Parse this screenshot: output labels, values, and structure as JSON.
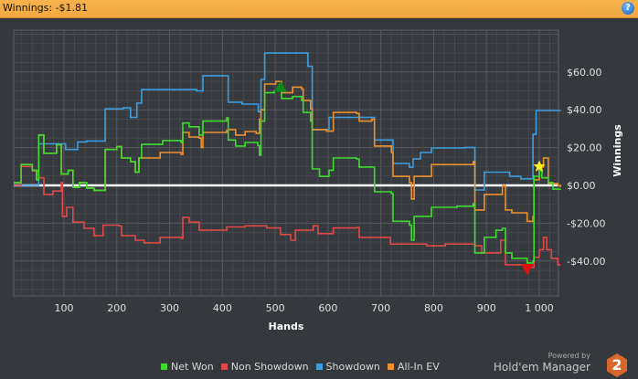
{
  "header": {
    "title": "Winnings: -$1.81",
    "help_icon": "help-icon"
  },
  "branding": {
    "powered_by": "Powered by",
    "name": "Hold'em Manager",
    "badge": "2"
  },
  "chart_data": {
    "type": "line",
    "xlabel": "Hands",
    "ylabel": "Winnings",
    "xlim": [
      5,
      1040
    ],
    "ylim": [
      -58,
      82
    ],
    "x_ticks": [
      100,
      200,
      300,
      400,
      500,
      600,
      700,
      800,
      900,
      1000
    ],
    "x_tick_labels": [
      "100",
      "200",
      "300",
      "400",
      "500",
      "600",
      "700",
      "800",
      "900",
      "1 000"
    ],
    "y_ticks": [
      -40,
      -20,
      0,
      20,
      40,
      60
    ],
    "y_tick_labels": [
      "-$40.00",
      "-$20.00",
      "$0.00",
      "$20.00",
      "$40.00",
      "$60.00"
    ],
    "grid": true,
    "legend": "bottom",
    "series": [
      {
        "name": "Net Won",
        "color": "#3ddc2f",
        "points": [
          [
            5,
            1.5
          ],
          [
            19,
            11
          ],
          [
            40,
            8
          ],
          [
            48,
            3
          ],
          [
            52,
            26.6
          ],
          [
            62,
            17
          ],
          [
            86,
            21.5
          ],
          [
            95,
            6
          ],
          [
            108,
            8
          ],
          [
            117,
            -1
          ],
          [
            129,
            1.5
          ],
          [
            143,
            -1.5
          ],
          [
            157,
            -2.6
          ],
          [
            178,
            19
          ],
          [
            200,
            20.5
          ],
          [
            209,
            14.5
          ],
          [
            226,
            12.5
          ],
          [
            235,
            7
          ],
          [
            242,
            14.5
          ],
          [
            247,
            21.7
          ],
          [
            287,
            23.7
          ],
          [
            322,
            22.7
          ],
          [
            325,
            33
          ],
          [
            337,
            31
          ],
          [
            356,
            26.6
          ],
          [
            363,
            34
          ],
          [
            408,
            35.7
          ],
          [
            411,
            24
          ],
          [
            425,
            20.8
          ],
          [
            443,
            22.7
          ],
          [
            467,
            21
          ],
          [
            470,
            16
          ],
          [
            473,
            34
          ],
          [
            480,
            49
          ],
          [
            498,
            50
          ],
          [
            512,
            46
          ],
          [
            533,
            47
          ],
          [
            550,
            45
          ],
          [
            553,
            38.6
          ],
          [
            567,
            34
          ],
          [
            570,
            8.7
          ],
          [
            584,
            4.8
          ],
          [
            602,
            8
          ],
          [
            610,
            14.5
          ],
          [
            654,
            14
          ],
          [
            659,
            9.7
          ],
          [
            688,
            -3.4
          ],
          [
            720,
            -4.3
          ],
          [
            723,
            -19
          ],
          [
            754,
            -21
          ],
          [
            758,
            -29
          ],
          [
            763,
            -16.4
          ],
          [
            796,
            -11.6
          ],
          [
            844,
            -11
          ],
          [
            875,
            -9.7
          ],
          [
            878,
            -35.7
          ],
          [
            896,
            -27.5
          ],
          [
            918,
            -23.7
          ],
          [
            930,
            -22.7
          ],
          [
            936,
            -35.7
          ],
          [
            948,
            -38.6
          ],
          [
            977,
            -41
          ],
          [
            988,
            -40
          ],
          [
            990,
            4.8
          ],
          [
            1000,
            7.7
          ],
          [
            1005,
            4
          ],
          [
            1017,
            1.5
          ],
          [
            1026,
            -2
          ],
          [
            1040,
            -1.81
          ]
        ]
      },
      {
        "name": "Non Showdown",
        "color": "#e04848",
        "points": [
          [
            5,
            0
          ],
          [
            19,
            10
          ],
          [
            40,
            7.7
          ],
          [
            52,
            4
          ],
          [
            62,
            -4.8
          ],
          [
            79,
            -3
          ],
          [
            95,
            1.5
          ],
          [
            97,
            -16.4
          ],
          [
            105,
            -11.6
          ],
          [
            117,
            -19.4
          ],
          [
            138,
            -22.7
          ],
          [
            157,
            -26.6
          ],
          [
            174,
            -21
          ],
          [
            204,
            -21.5
          ],
          [
            209,
            -26.6
          ],
          [
            235,
            -29
          ],
          [
            252,
            -30.4
          ],
          [
            282,
            -27.5
          ],
          [
            322,
            -28
          ],
          [
            325,
            -17
          ],
          [
            337,
            -19.4
          ],
          [
            356,
            -23.7
          ],
          [
            408,
            -22
          ],
          [
            443,
            -21.4
          ],
          [
            484,
            -22.5
          ],
          [
            510,
            -26
          ],
          [
            515,
            -26
          ],
          [
            529,
            -29
          ],
          [
            538,
            -23.7
          ],
          [
            572,
            -21.4
          ],
          [
            581,
            -25.5
          ],
          [
            610,
            -22.5
          ],
          [
            654,
            -22.3
          ],
          [
            659,
            -27.5
          ],
          [
            688,
            -27.5
          ],
          [
            718,
            -31
          ],
          [
            787,
            -32
          ],
          [
            822,
            -31
          ],
          [
            878,
            -32
          ],
          [
            891,
            -35.7
          ],
          [
            927,
            -29
          ],
          [
            936,
            -42
          ],
          [
            977,
            -43.5
          ],
          [
            990,
            -38
          ],
          [
            1000,
            -34
          ],
          [
            1008,
            -27.5
          ],
          [
            1014,
            -34
          ],
          [
            1023,
            -38.6
          ],
          [
            1035,
            -42
          ],
          [
            1040,
            -42
          ]
        ]
      },
      {
        "name": "Showdown",
        "color": "#3a9ee0",
        "points": [
          [
            5,
            0
          ],
          [
            27,
            0
          ],
          [
            52,
            22
          ],
          [
            103,
            19
          ],
          [
            126,
            23
          ],
          [
            143,
            23.5
          ],
          [
            178,
            40.5
          ],
          [
            212,
            41
          ],
          [
            226,
            36
          ],
          [
            238,
            43.5
          ],
          [
            247,
            50.7
          ],
          [
            351,
            50
          ],
          [
            363,
            58
          ],
          [
            411,
            44
          ],
          [
            437,
            43
          ],
          [
            468,
            39
          ],
          [
            473,
            56
          ],
          [
            480,
            70
          ],
          [
            550,
            70
          ],
          [
            562,
            63
          ],
          [
            570,
            29.5
          ],
          [
            602,
            36
          ],
          [
            688,
            24
          ],
          [
            723,
            11.6
          ],
          [
            754,
            9.6
          ],
          [
            761,
            14
          ],
          [
            775,
            17.4
          ],
          [
            796,
            19.8
          ],
          [
            858,
            20
          ],
          [
            878,
            -2.4
          ],
          [
            896,
            7
          ],
          [
            944,
            4.8
          ],
          [
            965,
            3.5
          ],
          [
            988,
            27
          ],
          [
            994,
            39.6
          ],
          [
            1040,
            40
          ]
        ]
      },
      {
        "name": "All-In EV",
        "color": "#f0902c",
        "points": [
          [
            5,
            1.5
          ],
          [
            19,
            11
          ],
          [
            40,
            8
          ],
          [
            48,
            3
          ],
          [
            52,
            26.6
          ],
          [
            62,
            17
          ],
          [
            86,
            21.5
          ],
          [
            95,
            6
          ],
          [
            108,
            8
          ],
          [
            117,
            -1
          ],
          [
            129,
            1.5
          ],
          [
            143,
            -1.5
          ],
          [
            157,
            -2.6
          ],
          [
            178,
            19
          ],
          [
            200,
            20.5
          ],
          [
            209,
            14.5
          ],
          [
            226,
            12.5
          ],
          [
            235,
            7
          ],
          [
            242,
            14.5
          ],
          [
            247,
            14.5
          ],
          [
            282,
            17.4
          ],
          [
            322,
            16.4
          ],
          [
            325,
            28
          ],
          [
            337,
            25.6
          ],
          [
            356,
            25
          ],
          [
            360,
            20
          ],
          [
            363,
            28
          ],
          [
            408,
            29
          ],
          [
            411,
            29.5
          ],
          [
            425,
            26.6
          ],
          [
            443,
            28.5
          ],
          [
            464,
            27.5
          ],
          [
            470,
            35
          ],
          [
            473,
            40
          ],
          [
            480,
            53.6
          ],
          [
            501,
            55
          ],
          [
            512,
            49
          ],
          [
            533,
            52
          ],
          [
            550,
            51
          ],
          [
            553,
            45
          ],
          [
            567,
            40.6
          ],
          [
            570,
            29.5
          ],
          [
            597,
            28.7
          ],
          [
            610,
            38.6
          ],
          [
            654,
            38
          ],
          [
            659,
            34
          ],
          [
            683,
            35
          ],
          [
            688,
            20.8
          ],
          [
            720,
            17.4
          ],
          [
            723,
            4.8
          ],
          [
            754,
            1.5
          ],
          [
            758,
            -7.2
          ],
          [
            763,
            4.8
          ],
          [
            796,
            11
          ],
          [
            844,
            11
          ],
          [
            875,
            12.5
          ],
          [
            878,
            -13
          ],
          [
            896,
            -4.8
          ],
          [
            918,
            -4.8
          ],
          [
            930,
            0
          ],
          [
            936,
            -13
          ],
          [
            948,
            -14.5
          ],
          [
            977,
            -19
          ],
          [
            988,
            -16.4
          ],
          [
            990,
            3
          ],
          [
            1000,
            9.7
          ],
          [
            1008,
            14.5
          ],
          [
            1017,
            1
          ],
          [
            1035,
            0
          ],
          [
            1040,
            -1
          ]
        ]
      }
    ],
    "markers": [
      {
        "type": "max",
        "shape": "triangle-up",
        "color": "#0a8a1a",
        "x": 510,
        "y": 52
      },
      {
        "type": "min",
        "shape": "triangle-down",
        "color": "#e01010",
        "x": 977,
        "y": -44
      },
      {
        "type": "star",
        "shape": "star",
        "color": "#ffee22",
        "x": 1000,
        "y": 10
      }
    ],
    "zero_line_color": "#ffffff"
  }
}
